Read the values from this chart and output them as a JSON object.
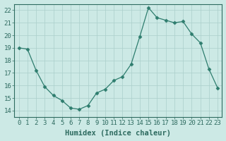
{
  "x": [
    0,
    1,
    2,
    3,
    4,
    5,
    6,
    7,
    8,
    9,
    10,
    11,
    12,
    13,
    14,
    15,
    16,
    17,
    18,
    19,
    20,
    21,
    22,
    23
  ],
  "y": [
    19.0,
    18.9,
    17.2,
    15.9,
    15.2,
    14.8,
    14.2,
    14.1,
    14.4,
    15.4,
    15.7,
    16.4,
    16.7,
    17.7,
    19.9,
    22.2,
    21.4,
    21.2,
    21.0,
    21.1,
    20.1,
    19.4,
    17.3,
    15.8
  ],
  "line_color": "#2e7d6e",
  "marker": "D",
  "marker_size": 2.5,
  "bg_color": "#cce9e5",
  "grid_color": "#aacfcb",
  "xlabel": "Humidex (Indice chaleur)",
  "ylim": [
    13.5,
    22.5
  ],
  "xlim": [
    -0.5,
    23.5
  ],
  "yticks": [
    14,
    15,
    16,
    17,
    18,
    19,
    20,
    21,
    22
  ],
  "xticks": [
    0,
    1,
    2,
    3,
    4,
    5,
    6,
    7,
    8,
    9,
    10,
    11,
    12,
    13,
    14,
    15,
    16,
    17,
    18,
    19,
    20,
    21,
    22,
    23
  ],
  "tick_fontsize": 6.5,
  "label_fontsize": 7.5,
  "tick_color": "#2e6b60",
  "spine_color": "#2e6b60"
}
